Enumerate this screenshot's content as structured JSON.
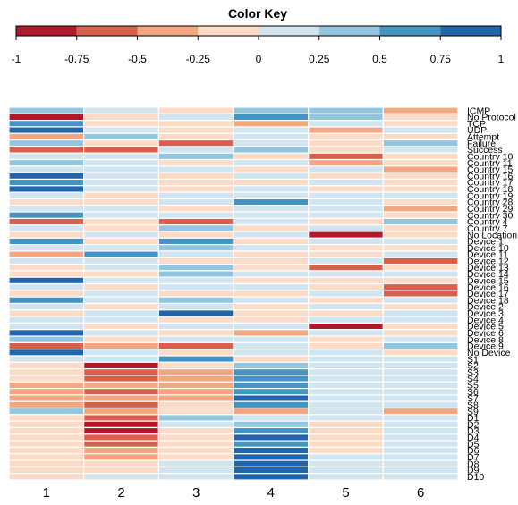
{
  "palette": [
    "#b2182b",
    "#d6604d",
    "#f4a582",
    "#fddbc7",
    "#d1e5f0",
    "#92c5de",
    "#4393c3",
    "#2166ac"
  ],
  "chart_data": {
    "type": "heatmap",
    "title": "Color Key",
    "key_breaks": [
      -1,
      -0.75,
      -0.5,
      -0.25,
      0,
      0.25,
      0.5,
      0.75,
      1
    ],
    "key_tick_labels": [
      "-1",
      "-0.75",
      "-0.5",
      "-0.25",
      "0",
      "0.25",
      "0.5",
      "0.75",
      "1"
    ],
    "columns": [
      "1",
      "2",
      "3",
      "4",
      "5",
      "6"
    ],
    "row_labels": [
      "ICMP",
      "No Protocol",
      "TCP",
      "UDP",
      "Attempt",
      "Failure",
      "Success",
      "Country 10",
      "Country 11",
      "Country 15",
      "Country 16",
      "Country 17",
      "Country 18",
      "Country 19",
      "Country 28",
      "Country 29",
      "Country 30",
      "Country 4",
      "Country 7",
      "No Location",
      "Device 1",
      "Device 10",
      "Device 11",
      "Device 12",
      "Device 13",
      "Device 14",
      "Device 15",
      "Device 16",
      "Device 17",
      "Device 18",
      "Device 2",
      "Device 3",
      "Device 4",
      "Device 5",
      "Device 6",
      "Device 8",
      "Device 9",
      "No Device",
      "S1",
      "S2",
      "S3",
      "S4",
      "S5",
      "S6",
      "S7",
      "S8",
      "S9",
      "D1",
      "D2",
      "D3",
      "D4",
      "D5",
      "D6",
      "D7",
      "D8",
      "D9",
      "D10"
    ],
    "values": [
      [
        0.4,
        0.1,
        -0.15,
        0.4,
        0.4,
        -0.4
      ],
      [
        -0.85,
        -0.15,
        0.1,
        0.5,
        0.4,
        -0.15
      ],
      [
        0.5,
        -0.15,
        -0.15,
        -0.4,
        0.1,
        -0.15
      ],
      [
        0.8,
        0.1,
        -0.15,
        0.1,
        -0.4,
        0.1
      ],
      [
        -0.4,
        0.4,
        -0.15,
        0.1,
        -0.15,
        -0.15
      ],
      [
        0.4,
        -0.15,
        -0.6,
        0.1,
        -0.15,
        0.4
      ],
      [
        -0.6,
        -0.6,
        0.1,
        0.4,
        -0.15,
        0.1
      ],
      [
        0.1,
        0.1,
        0.4,
        -0.15,
        -0.6,
        -0.15
      ],
      [
        0.4,
        0.1,
        -0.15,
        0.1,
        -0.4,
        -0.15
      ],
      [
        0.1,
        0.1,
        0.1,
        -0.15,
        0.1,
        -0.4
      ],
      [
        0.8,
        0.1,
        -0.15,
        0.1,
        -0.15,
        -0.15
      ],
      [
        0.5,
        0.1,
        -0.15,
        -0.15,
        0.1,
        -0.15
      ],
      [
        0.8,
        0.1,
        -0.15,
        0.1,
        -0.15,
        -0.15
      ],
      [
        0.1,
        -0.15,
        0.1,
        0.1,
        0.1,
        0.1
      ],
      [
        -0.15,
        -0.15,
        0.1,
        0.6,
        0.1,
        -0.15
      ],
      [
        0.1,
        0.1,
        -0.15,
        0.1,
        0.1,
        -0.4
      ],
      [
        0.6,
        0.1,
        0.1,
        0.1,
        0.1,
        -0.15
      ],
      [
        -0.6,
        -0.15,
        -0.6,
        0.1,
        -0.15,
        0.4
      ],
      [
        0.1,
        -0.15,
        0.4,
        -0.15,
        0.1,
        -0.15
      ],
      [
        -0.15,
        0.1,
        -0.15,
        0.1,
        -0.85,
        -0.15
      ],
      [
        0.6,
        -0.15,
        0.6,
        -0.15,
        0.1,
        0.1
      ],
      [
        0.1,
        0.1,
        0.4,
        0.1,
        -0.15,
        -0.15
      ],
      [
        -0.4,
        0.6,
        0.1,
        -0.15,
        -0.15,
        0.1
      ],
      [
        0.1,
        0.1,
        -0.15,
        -0.15,
        0.1,
        -0.6
      ],
      [
        -0.15,
        0.1,
        0.4,
        -0.15,
        -0.6,
        -0.15
      ],
      [
        -0.15,
        -0.15,
        0.4,
        0.1,
        0.1,
        0.1
      ],
      [
        0.8,
        0.1,
        0.1,
        -0.15,
        -0.15,
        -0.15
      ],
      [
        0.1,
        -0.15,
        0.1,
        0.1,
        -0.15,
        -0.6
      ],
      [
        -0.15,
        0.1,
        -0.15,
        -0.15,
        0.1,
        -0.6
      ],
      [
        0.6,
        0.1,
        0.4,
        0.1,
        -0.15,
        0.1
      ],
      [
        0.1,
        -0.15,
        0.1,
        -0.15,
        0.1,
        -0.15
      ],
      [
        -0.15,
        0.1,
        0.8,
        -0.15,
        -0.15,
        0.1
      ],
      [
        0.1,
        0.1,
        -0.15,
        -0.15,
        0.1,
        0.1
      ],
      [
        0.1,
        -0.15,
        0.1,
        0.1,
        -0.85,
        -0.15
      ],
      [
        0.8,
        0.1,
        -0.15,
        -0.4,
        0.1,
        -0.15
      ],
      [
        0.4,
        -0.15,
        0.1,
        0.1,
        -0.15,
        0.1
      ],
      [
        -0.6,
        -0.4,
        -0.6,
        0.1,
        -0.15,
        0.4
      ],
      [
        0.8,
        0.1,
        -0.15,
        0.1,
        0.1,
        -0.15
      ],
      [
        0.1,
        0.1,
        0.6,
        -0.15,
        0.1,
        0.1
      ],
      [
        -0.15,
        -0.85,
        -0.15,
        0.4,
        0.1,
        0.1
      ],
      [
        -0.15,
        -0.75,
        -0.4,
        0.5,
        0.1,
        0.1
      ],
      [
        -0.15,
        -0.6,
        -0.4,
        0.5,
        0.1,
        0.1
      ],
      [
        -0.4,
        -0.4,
        -0.4,
        0.6,
        0.1,
        0.1
      ],
      [
        -0.4,
        -0.6,
        -0.4,
        0.6,
        0.1,
        0.1
      ],
      [
        -0.4,
        -0.4,
        -0.4,
        0.8,
        0.1,
        0.1
      ],
      [
        -0.4,
        -0.6,
        -0.15,
        0.6,
        0.1,
        0.1
      ],
      [
        0.4,
        -0.4,
        -0.15,
        -0.4,
        0.1,
        -0.4
      ],
      [
        -0.15,
        -0.6,
        0.4,
        0.1,
        0.1,
        0.1
      ],
      [
        -0.15,
        -0.85,
        0.1,
        0.4,
        -0.15,
        0.1
      ],
      [
        -0.15,
        -0.85,
        -0.15,
        0.6,
        -0.15,
        0.1
      ],
      [
        -0.15,
        -0.75,
        -0.15,
        0.8,
        -0.15,
        0.1
      ],
      [
        -0.15,
        -0.6,
        -0.15,
        0.6,
        -0.15,
        0.1
      ],
      [
        -0.15,
        -0.4,
        -0.15,
        0.8,
        -0.15,
        0.1
      ],
      [
        -0.15,
        -0.4,
        -0.15,
        0.8,
        0.1,
        0.1
      ],
      [
        -0.15,
        -0.15,
        0.1,
        0.8,
        0.1,
        0.1
      ],
      [
        -0.15,
        -0.15,
        0.1,
        0.8,
        0.1,
        0.1
      ],
      [
        -0.15,
        0.1,
        0.1,
        0.8,
        0.1,
        0.1
      ]
    ],
    "value_range": [
      -1,
      1
    ],
    "legend": "top"
  }
}
